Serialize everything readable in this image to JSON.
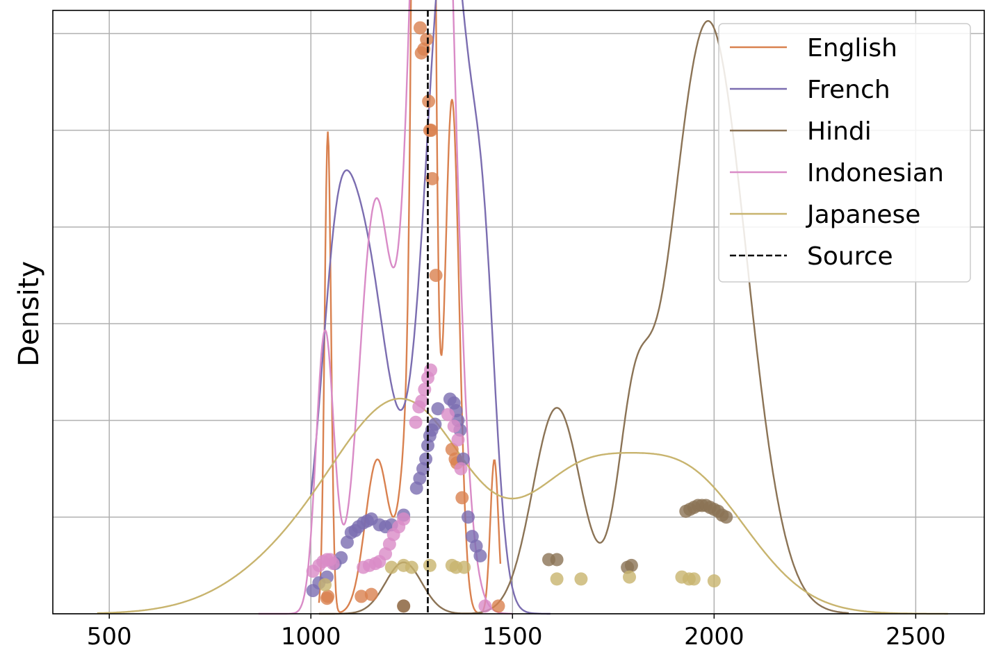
{
  "chart_data": {
    "type": "line",
    "ylabel": "Density",
    "xlabel": "",
    "xlim": [
      360,
      2670
    ],
    "ylim": [
      0,
      0.00312
    ],
    "x_ticks": [
      "500",
      "1000",
      "1500",
      "2000",
      "2500"
    ],
    "grid": true,
    "legend_position": "top-right",
    "reference_line": {
      "label": "Source",
      "x": 1290,
      "color": "#000000",
      "style": "dashed"
    },
    "series": [
      {
        "name": "English",
        "color": "#d9814f",
        "curve": {
          "x_range": [
            1020,
            1470
          ],
          "components": [
            {
              "w": 0.7,
              "mu": 1280,
              "sd": 16
            },
            {
              "w": 0.12,
              "mu": 1350,
              "sd": 18
            },
            {
              "w": 0.05,
              "mu": 1042,
              "sd": 8
            },
            {
              "w": 0.06,
              "mu": 1165,
              "sd": 30
            },
            {
              "w": 0.04,
              "mu": 1240,
              "sd": 20
            },
            {
              "w": 0.02,
              "mu": 1455,
              "sd": 10
            }
          ]
        },
        "points": [
          [
            1040,
            8e-05
          ],
          [
            1042,
            9e-05
          ],
          [
            1125,
            9e-05
          ],
          [
            1150,
            0.0001
          ],
          [
            1230,
            4e-05
          ],
          [
            1271,
            0.00303
          ],
          [
            1274,
            0.0029
          ],
          [
            1280,
            0.00292
          ],
          [
            1287,
            0.00297
          ],
          [
            1292,
            0.00265
          ],
          [
            1295,
            0.0025
          ],
          [
            1298,
            0.0025
          ],
          [
            1301,
            0.00225
          ],
          [
            1310,
            0.00175
          ],
          [
            1350,
            0.00085
          ],
          [
            1358,
            0.0008
          ],
          [
            1362,
            0.00078
          ],
          [
            1375,
            0.0006
          ],
          [
            1465,
            4e-05
          ]
        ]
      },
      {
        "name": "French",
        "color": "#7b6db0",
        "curve": {
          "x_range": [
            1000,
            1595
          ],
          "components": [
            {
              "w": 0.35,
              "mu": 1120,
              "sd": 70
            },
            {
              "w": 0.5,
              "mu": 1340,
              "sd": 55
            },
            {
              "w": 0.06,
              "mu": 1060,
              "sd": 35
            },
            {
              "w": 0.09,
              "mu": 1430,
              "sd": 30
            }
          ]
        },
        "points": [
          [
            1005,
            0.00012
          ],
          [
            1020,
            0.00016
          ],
          [
            1040,
            0.00019
          ],
          [
            1060,
            0.00026
          ],
          [
            1075,
            0.00029
          ],
          [
            1090,
            0.00037
          ],
          [
            1100,
            0.00042
          ],
          [
            1110,
            0.00043
          ],
          [
            1118,
            0.00045
          ],
          [
            1130,
            0.00047
          ],
          [
            1140,
            0.00048
          ],
          [
            1150,
            0.00049
          ],
          [
            1170,
            0.00046
          ],
          [
            1185,
            0.00045
          ],
          [
            1200,
            0.00046
          ],
          [
            1230,
            0.00051
          ],
          [
            1262,
            0.00065
          ],
          [
            1270,
            0.0007
          ],
          [
            1278,
            0.00075
          ],
          [
            1285,
            0.0008
          ],
          [
            1290,
            0.00087
          ],
          [
            1295,
            0.00092
          ],
          [
            1300,
            0.00095
          ],
          [
            1308,
            0.00098
          ],
          [
            1315,
            0.00106
          ],
          [
            1345,
            0.00111
          ],
          [
            1355,
            0.00109
          ],
          [
            1360,
            0.00105
          ],
          [
            1365,
            0.001
          ],
          [
            1370,
            0.00095
          ],
          [
            1378,
            0.0008
          ],
          [
            1390,
            0.0005
          ],
          [
            1400,
            0.0004
          ],
          [
            1410,
            0.00035
          ],
          [
            1420,
            0.0003
          ]
        ]
      },
      {
        "name": "Hindi",
        "color": "#8b7355",
        "curve": {
          "x_range": [
            1020,
            2335
          ],
          "components": [
            {
              "w": 0.03,
              "mu": 1230,
              "sd": 45
            },
            {
              "w": 0.16,
              "mu": 1610,
              "sd": 60
            },
            {
              "w": 0.08,
              "mu": 1800,
              "sd": 40
            },
            {
              "w": 0.73,
              "mu": 1985,
              "sd": 95
            }
          ]
        },
        "points": [
          [
            1230,
            4e-05
          ],
          [
            1590,
            0.00028
          ],
          [
            1610,
            0.00028
          ],
          [
            1785,
            0.00024
          ],
          [
            1795,
            0.00025
          ],
          [
            1930,
            0.00053
          ],
          [
            1940,
            0.00054
          ],
          [
            1950,
            0.00055
          ],
          [
            1960,
            0.00056
          ],
          [
            1970,
            0.00056
          ],
          [
            1980,
            0.00056
          ],
          [
            1990,
            0.00055
          ],
          [
            2000,
            0.00054
          ],
          [
            2010,
            0.00053
          ],
          [
            2020,
            0.00051
          ],
          [
            2030,
            0.0005
          ]
        ]
      },
      {
        "name": "Indonesian",
        "color": "#d98bc7",
        "curve": {
          "x_range": [
            870,
            1500
          ],
          "components": [
            {
              "w": 0.08,
              "mu": 1035,
              "sd": 22
            },
            {
              "w": 0.21,
              "mu": 1160,
              "sd": 40
            },
            {
              "w": 0.71,
              "mu": 1300,
              "sd": 45
            }
          ]
        },
        "points": [
          [
            1005,
            0.00022
          ],
          [
            1020,
            0.00025
          ],
          [
            1030,
            0.00027
          ],
          [
            1040,
            0.00028
          ],
          [
            1048,
            0.00028
          ],
          [
            1055,
            0.00026
          ],
          [
            1130,
            0.00024
          ],
          [
            1145,
            0.00025
          ],
          [
            1160,
            0.00026
          ],
          [
            1170,
            0.00027
          ],
          [
            1185,
            0.00031
          ],
          [
            1195,
            0.00036
          ],
          [
            1205,
            0.00041
          ],
          [
            1218,
            0.00045
          ],
          [
            1230,
            0.00049
          ],
          [
            1260,
            0.00099
          ],
          [
            1268,
            0.00107
          ],
          [
            1275,
            0.0011
          ],
          [
            1282,
            0.00116
          ],
          [
            1290,
            0.00122
          ],
          [
            1297,
            0.00126
          ],
          [
            1340,
            0.00103
          ],
          [
            1355,
            0.00097
          ],
          [
            1365,
            0.0009
          ],
          [
            1372,
            0.00075
          ],
          [
            1432,
            4e-05
          ]
        ]
      },
      {
        "name": "Japanese",
        "color": "#c8b46e",
        "curve": {
          "x_range": [
            470,
            2580
          ],
          "components": [
            {
              "w": 0.38,
              "mu": 1250,
              "sd": 160
            },
            {
              "w": 0.18,
              "mu": 1650,
              "sd": 130
            },
            {
              "w": 0.29,
              "mu": 1920,
              "sd": 160
            },
            {
              "w": 0.15,
              "mu": 1020,
              "sd": 180
            }
          ]
        },
        "points": [
          [
            1035,
            0.00015
          ],
          [
            1200,
            0.00024
          ],
          [
            1230,
            0.00025
          ],
          [
            1250,
            0.00024
          ],
          [
            1295,
            0.00025
          ],
          [
            1350,
            0.00025
          ],
          [
            1360,
            0.00024
          ],
          [
            1380,
            0.00024
          ],
          [
            1610,
            0.00018
          ],
          [
            1670,
            0.00018
          ],
          [
            1790,
            0.00019
          ],
          [
            1920,
            0.00019
          ],
          [
            1938,
            0.00018
          ],
          [
            1950,
            0.00018
          ],
          [
            2000,
            0.00017
          ]
        ]
      }
    ]
  }
}
